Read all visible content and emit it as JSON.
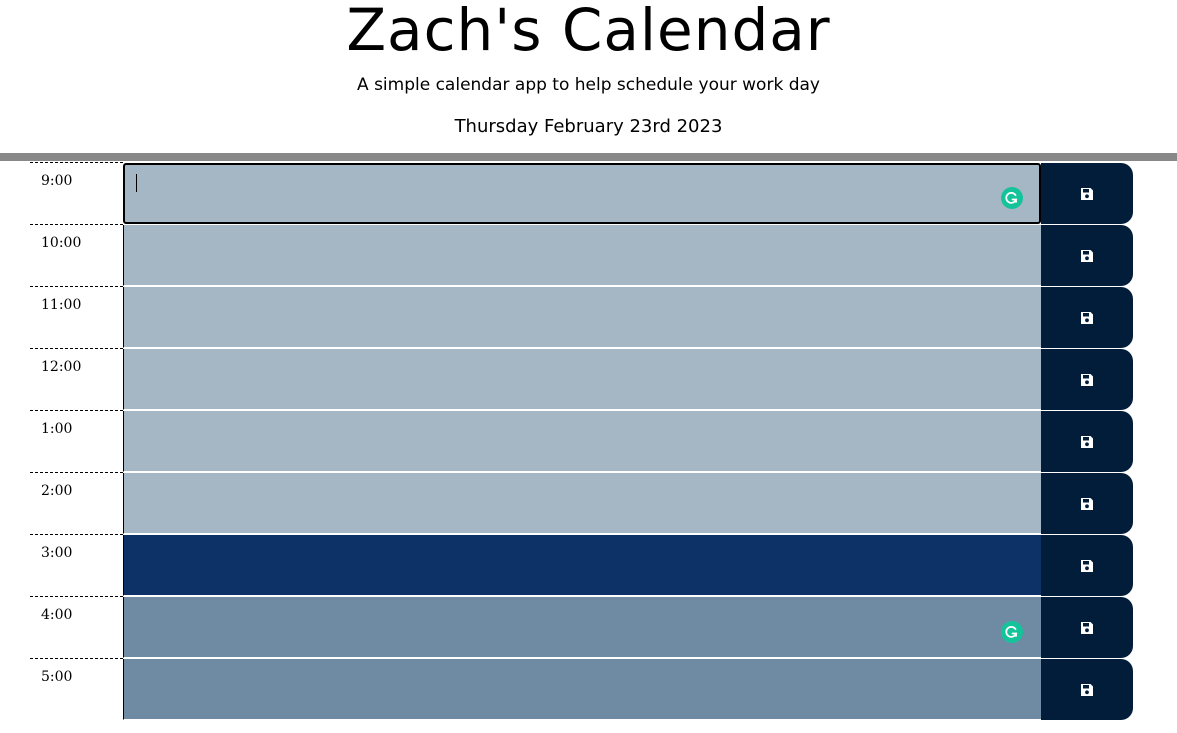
{
  "header": {
    "title": "Zach's Calendar",
    "subtitle": "A simple calendar app to help schedule your work day",
    "current_day": "Thursday February 23rd 2023"
  },
  "rows": [
    {
      "hour": "9:00",
      "text": "",
      "state": "past"
    },
    {
      "hour": "10:00",
      "text": "",
      "state": "past"
    },
    {
      "hour": "11:00",
      "text": "",
      "state": "past"
    },
    {
      "hour": "12:00",
      "text": "",
      "state": "past"
    },
    {
      "hour": "1:00",
      "text": "",
      "state": "past"
    },
    {
      "hour": "2:00",
      "text": "",
      "state": "past"
    },
    {
      "hour": "3:00",
      "text": "",
      "state": "present"
    },
    {
      "hour": "4:00",
      "text": "",
      "state": "future"
    },
    {
      "hour": "5:00",
      "text": "",
      "state": "future"
    }
  ],
  "icons": {
    "save": "save-icon",
    "grammarly": "grammarly-icon"
  },
  "colors": {
    "past": "#a5b6c4",
    "present": "#0c3268",
    "future": "#6f8ba4",
    "save_button": "#021d3a",
    "divider": "#888888",
    "grammarly": "#15c39a"
  }
}
